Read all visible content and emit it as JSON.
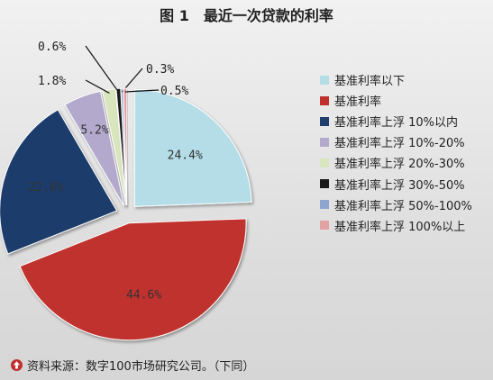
{
  "title": "图 1　最近一次贷款的利率",
  "chart_data": {
    "type": "pie",
    "title": "图 1　最近一次贷款的利率",
    "slices": [
      {
        "label": "基准利率以下",
        "value": 24.4,
        "value_label": "24.4%",
        "color": "#b4dde8"
      },
      {
        "label": "基准利率",
        "value": 44.6,
        "value_label": "44.6%",
        "color": "#c0302d"
      },
      {
        "label": "基准利率上浮 10%以内",
        "value": 22.6,
        "value_label": "22.6%",
        "color": "#1f3e6c"
      },
      {
        "label": "基准利率上浮 10%-20%",
        "value": 5.2,
        "value_label": "5.2%",
        "color": "#b3a9cc"
      },
      {
        "label": "基准利率上浮 20%-30%",
        "value": 1.8,
        "value_label": "1.8%",
        "color": "#d9e6bd"
      },
      {
        "label": "基准利率上浮 30%-50%",
        "value": 0.6,
        "value_label": "0.6%",
        "color": "#1a1a1a"
      },
      {
        "label": "基准利率上浮 50%-100%",
        "value": 0.3,
        "value_label": "0.3%",
        "color": "#8ea6cf"
      },
      {
        "label": "基准利率上浮 100%以上",
        "value": 0.5,
        "value_label": "0.5%",
        "color": "#e2a1a3"
      }
    ],
    "legend_position": "right"
  },
  "footer": {
    "source_text": "资料来源：数字100市场研究公司。（下同）",
    "icon": "up-arrow-circle-icon",
    "icon_color": "#c0302d"
  }
}
